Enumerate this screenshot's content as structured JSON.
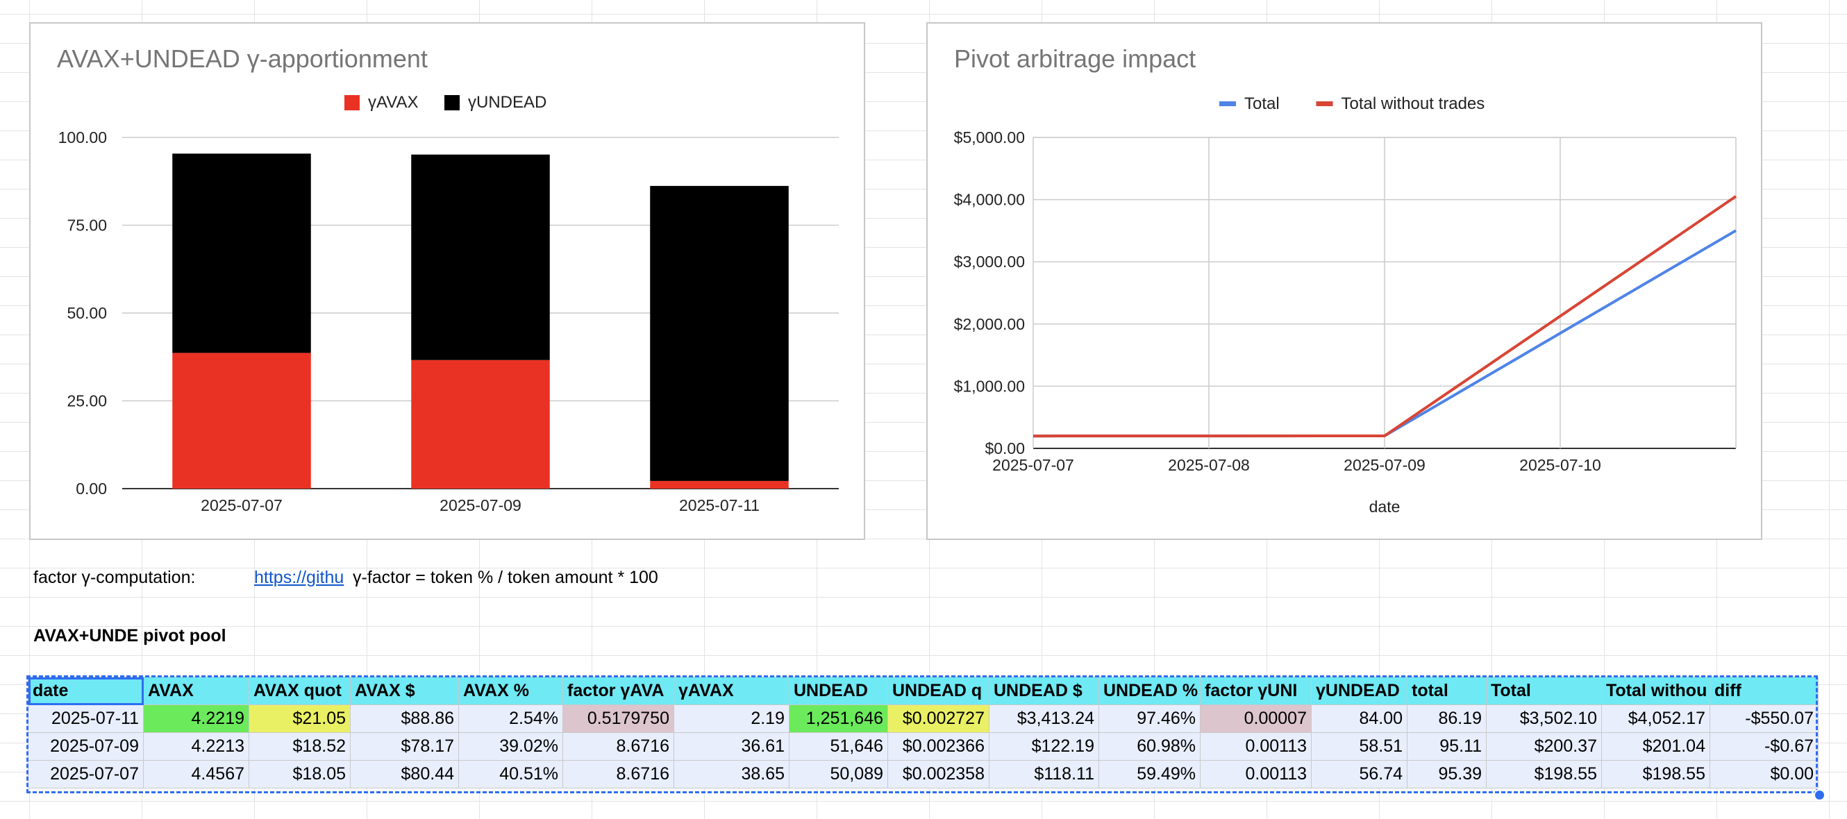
{
  "chart_data": [
    {
      "type": "bar",
      "stacked": true,
      "title": "AVAX+UNDEAD γ-apportionment",
      "categories": [
        "2025-07-07",
        "2025-07-09",
        "2025-07-11"
      ],
      "series": [
        {
          "name": "γUNDEAD",
          "values": [
            56.74,
            58.51,
            84.0
          ],
          "color": "#000000"
        },
        {
          "name": "γAVAX",
          "values": [
            38.65,
            36.61,
            2.19
          ],
          "color": "#ea3224"
        }
      ],
      "ylim": [
        0,
        100
      ],
      "yticks": [
        "0.00",
        "25.00",
        "50.00",
        "75.00",
        "100.00"
      ],
      "ytick_values": [
        0,
        25,
        50,
        75,
        100
      ],
      "legend": "top-center",
      "grid": true
    },
    {
      "type": "line",
      "title": "Pivot arbitrage impact",
      "xlabel": "date",
      "x": [
        "2025-07-07",
        "2025-07-09",
        "2025-07-11"
      ],
      "xticks": [
        "2025-07-07",
        "2025-07-08",
        "2025-07-09",
        "2025-07-10"
      ],
      "x_range": [
        "2025-07-07",
        "2025-07-11"
      ],
      "series": [
        {
          "name": "Total",
          "values": [
            198.55,
            200.37,
            3502.1
          ],
          "color": "#4f84e6"
        },
        {
          "name": "Total without trades",
          "values": [
            198.55,
            201.04,
            4052.17
          ],
          "color": "#d84535"
        }
      ],
      "ylim": [
        0,
        5000
      ],
      "yticks": [
        "$0.00",
        "$1,000.00",
        "$2,000.00",
        "$3,000.00",
        "$4,000.00",
        "$5,000.00"
      ],
      "ytick_values": [
        0,
        1000,
        2000,
        3000,
        4000,
        5000
      ],
      "legend": "top-center",
      "grid": true
    }
  ],
  "notes": {
    "factor_label": "factor γ-computation:",
    "factor_link": "https://githu",
    "factor_formula": "γ-factor = token % / token amount * 100",
    "pool_title": "AVAX+UNDE pivot pool"
  },
  "table": {
    "headers": [
      "date",
      "AVAX",
      "AVAX quot",
      "AVAX $",
      "AVAX %",
      "factor γAVA",
      "γAVAX",
      "UNDEAD",
      "UNDEAD q",
      "UNDEAD $",
      "UNDEAD %",
      "factor γUNI",
      "γUNDEAD",
      "total",
      "Total",
      "Total withou",
      "diff"
    ],
    "rows": [
      [
        "2025-07-11",
        "4.2219",
        "$21.05",
        "$88.86",
        "2.54%",
        "0.5179750",
        "2.19",
        "1,251,646",
        "$0.002727",
        "$3,413.24",
        "97.46%",
        "0.00007",
        "84.00",
        "86.19",
        "$3,502.10",
        "$4,052.17",
        "-$550.07"
      ],
      [
        "2025-07-09",
        "4.2213",
        "$18.52",
        "$78.17",
        "39.02%",
        "8.6716",
        "36.61",
        "51,646",
        "$0.002366",
        "$122.19",
        "60.98%",
        "0.00113",
        "58.51",
        "95.11",
        "$200.37",
        "$201.04",
        "-$0.67"
      ],
      [
        "2025-07-07",
        "4.4567",
        "$18.05",
        "$80.44",
        "40.51%",
        "8.6716",
        "38.65",
        "50,089",
        "$0.002358",
        "$118.11",
        "59.49%",
        "0.00113",
        "56.74",
        "95.39",
        "$198.55",
        "$198.55",
        "$0.00"
      ]
    ],
    "highlight_colors": {
      "green": "#6bea5c",
      "yellow": "#eaf064",
      "pink": "#dcc5cd",
      "header": "#6fe9f4"
    }
  }
}
